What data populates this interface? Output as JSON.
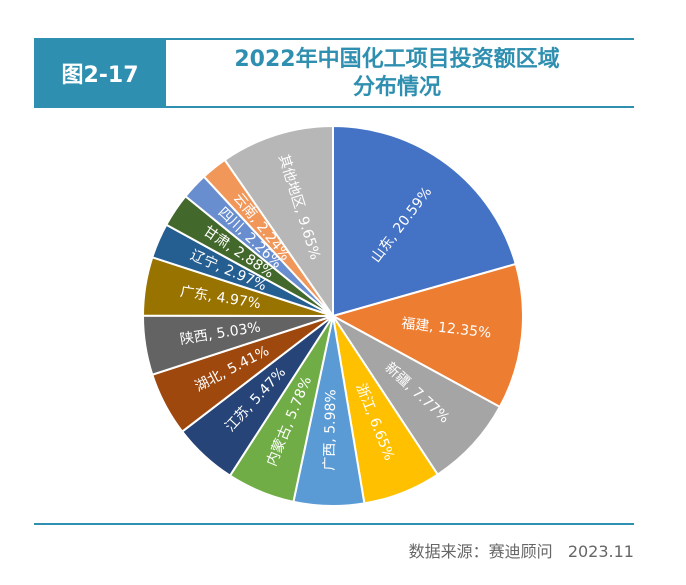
{
  "header": {
    "figure_label": "图2-17",
    "title_line1": "2022年中国化工项目投资额区域",
    "title_line2": "分布情况"
  },
  "footer": {
    "source": "数据来源：赛迪顾问   2023.11"
  },
  "colors": {
    "accent": "#2f8fb0"
  },
  "chart_data": {
    "type": "pie",
    "title": "2022年中国化工项目投资额区域分布情况",
    "unit": "%",
    "slices": [
      {
        "label": "山东",
        "value": 20.59,
        "display": "山东, 20.59%",
        "color": "#4472c4"
      },
      {
        "label": "福建",
        "value": 12.35,
        "display": "福建, 12.35%",
        "color": "#ed7d31"
      },
      {
        "label": "新疆",
        "value": 7.77,
        "display": "新疆, 7.77%",
        "color": "#a5a5a5"
      },
      {
        "label": "浙江",
        "value": 6.65,
        "display": "浙江, 6.65%",
        "color": "#ffc000"
      },
      {
        "label": "广西",
        "value": 5.98,
        "display": "广西, 5.98%",
        "color": "#5b9bd5"
      },
      {
        "label": "内蒙古",
        "value": 5.78,
        "display": "内蒙古, 5.78%",
        "color": "#70ad47"
      },
      {
        "label": "江苏",
        "value": 5.47,
        "display": "江苏, 5.47%",
        "color": "#264478"
      },
      {
        "label": "湖北",
        "value": 5.41,
        "display": "湖北, 5.41%",
        "color": "#9e480e"
      },
      {
        "label": "陕西",
        "value": 5.03,
        "display": "陕西, 5.03%",
        "color": "#636363"
      },
      {
        "label": "广东",
        "value": 4.97,
        "display": "广东, 4.97%",
        "color": "#997300"
      },
      {
        "label": "辽宁",
        "value": 2.97,
        "display": "辽宁, 2.97%",
        "color": "#255e91"
      },
      {
        "label": "甘肃",
        "value": 2.88,
        "display": "甘肃, 2.88%",
        "color": "#43682b"
      },
      {
        "label": "四川",
        "value": 2.26,
        "display": "四川, 2.26%",
        "color": "#698ed0"
      },
      {
        "label": "云南",
        "value": 2.24,
        "display": "云南, 2.24%",
        "color": "#f1975a"
      },
      {
        "label": "其他地区",
        "value": 9.65,
        "display": "其他地区, 9.65%",
        "color": "#b7b7b7"
      }
    ]
  }
}
